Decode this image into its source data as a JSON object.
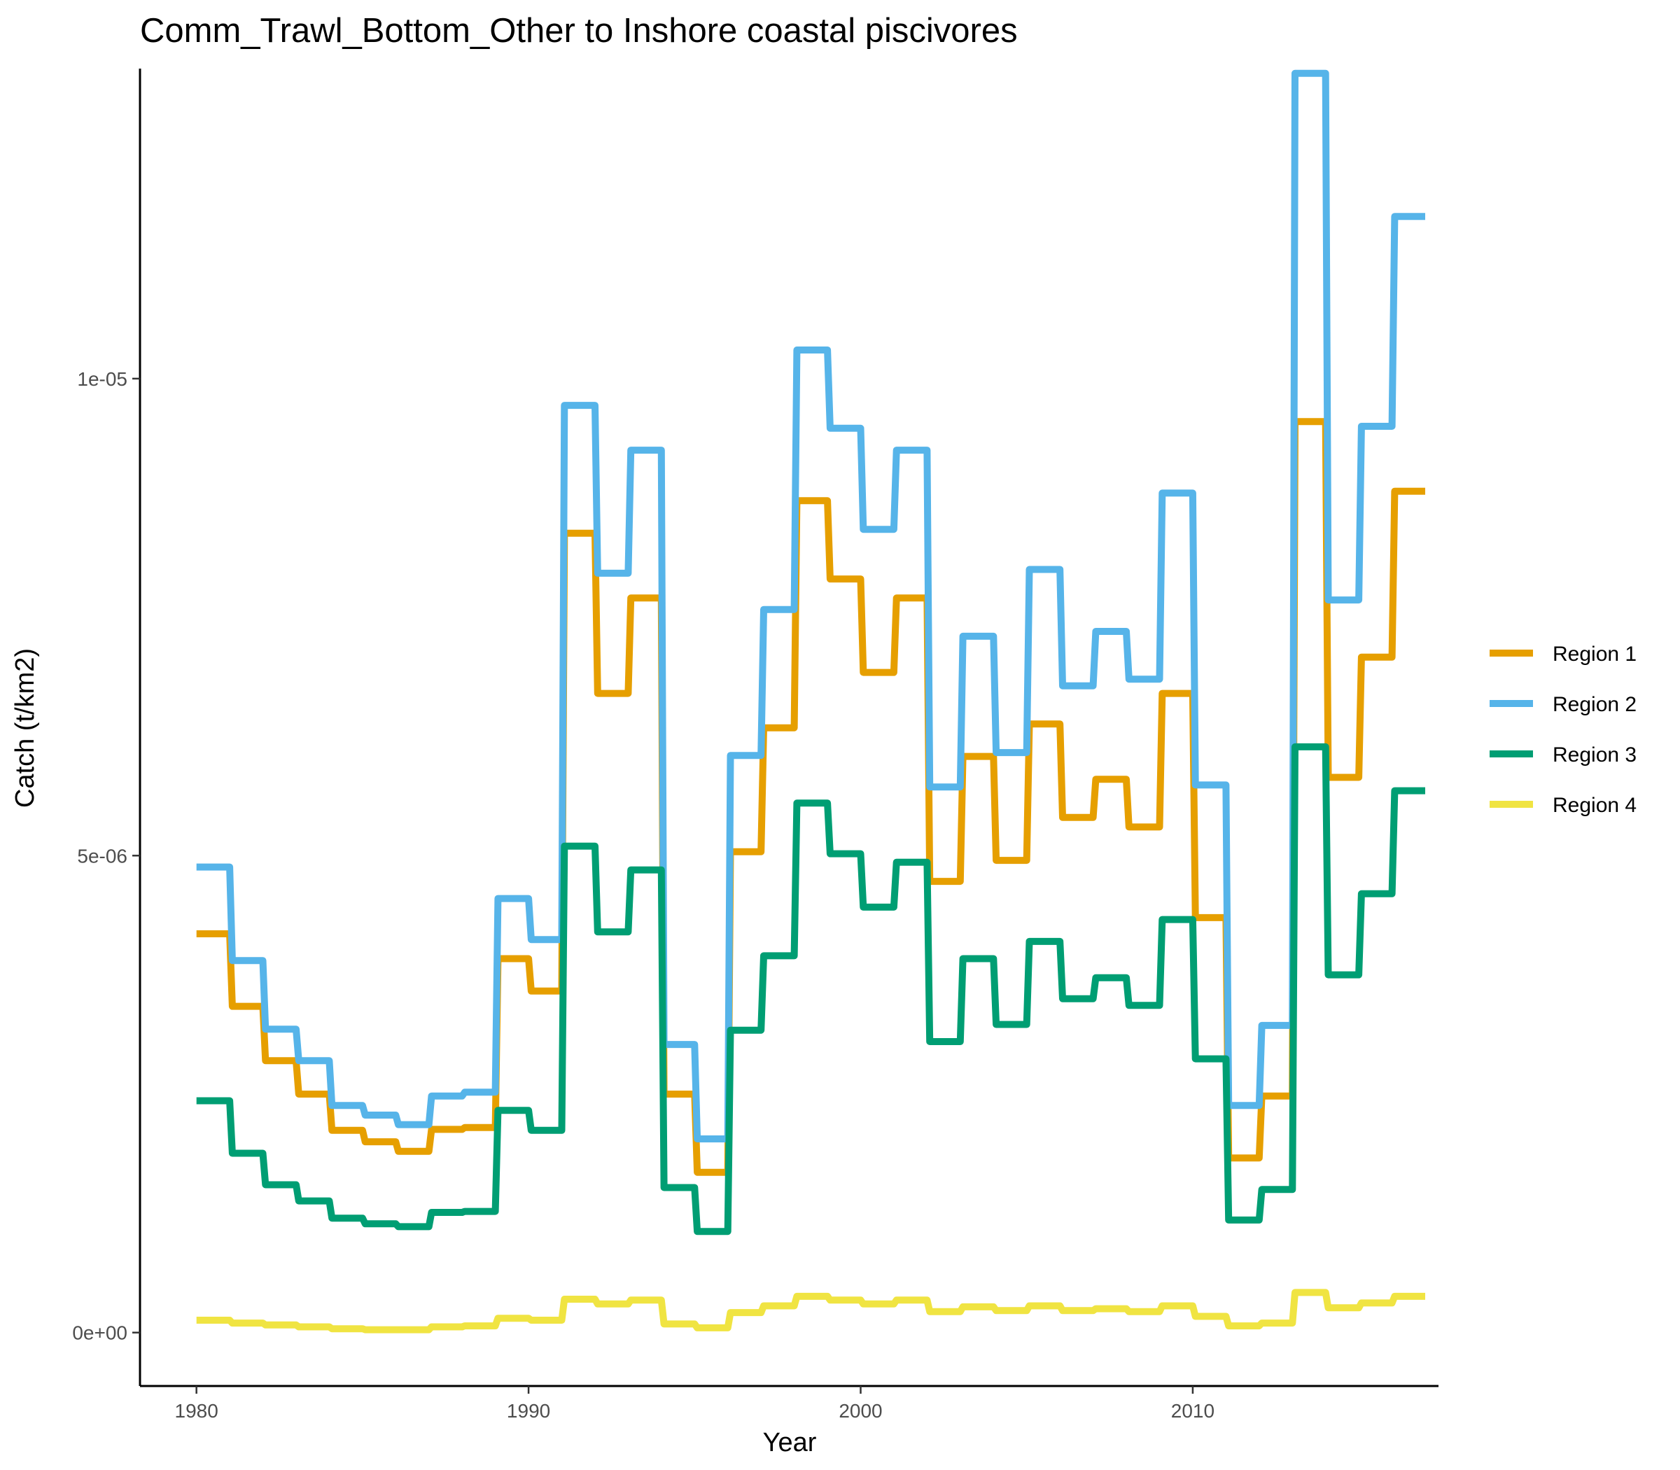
{
  "chart_data": {
    "type": "line",
    "title": "Comm_Trawl_Bottom_Other to Inshore coastal piscivores",
    "xlabel": "Year",
    "ylabel": "Catch (t/km2)",
    "xlim": [
      1978.3,
      2017.4
    ],
    "ylim": [
      -5.6e-07,
      1.325e-05
    ],
    "x_ticks": [
      1980,
      1990,
      2000,
      2010
    ],
    "x_tick_labels": [
      "1980",
      "1990",
      "2000",
      "2010"
    ],
    "y_ticks": [
      0,
      5e-06,
      1e-05
    ],
    "y_tick_labels": [
      "0e+00",
      "5e-06",
      "1e-05"
    ],
    "grid": false,
    "legend_position": "right",
    "x": [
      1980,
      1981,
      1982,
      1983,
      1984,
      1985,
      1986,
      1987,
      1988,
      1989,
      1990,
      1991,
      1992,
      1993,
      1994,
      1995,
      1996,
      1997,
      1998,
      1999,
      2000,
      2001,
      2002,
      2003,
      2004,
      2005,
      2006,
      2007,
      2008,
      2009,
      2010,
      2011,
      2012,
      2013,
      2014,
      2015,
      2016
    ],
    "series": [
      {
        "name": "Region 1",
        "color": "#E69F00",
        "values": [
          4.18e-06,
          3.42e-06,
          2.85e-06,
          2.5e-06,
          2.12e-06,
          2e-06,
          1.9e-06,
          2.13e-06,
          2.15e-06,
          3.92e-06,
          3.58e-06,
          8.38e-06,
          6.7e-06,
          7.7e-06,
          2.5e-06,
          1.68e-06,
          5.04e-06,
          6.34e-06,
          8.72e-06,
          7.9e-06,
          6.92e-06,
          7.7e-06,
          4.73e-06,
          6.04e-06,
          4.95e-06,
          6.38e-06,
          5.4e-06,
          5.8e-06,
          5.3e-06,
          6.7e-06,
          4.35e-06,
          1.83e-06,
          2.48e-06,
          9.55e-06,
          5.82e-06,
          7.08e-06,
          8.82e-06
        ]
      },
      {
        "name": "Region 2",
        "color": "#56B4E9",
        "values": [
          4.88e-06,
          3.9e-06,
          3.18e-06,
          2.85e-06,
          2.38e-06,
          2.28e-06,
          2.18e-06,
          2.48e-06,
          2.52e-06,
          4.55e-06,
          4.12e-06,
          9.72e-06,
          7.96e-06,
          9.25e-06,
          3.02e-06,
          2.03e-06,
          6.05e-06,
          7.58e-06,
          1.03e-05,
          9.48e-06,
          8.42e-06,
          9.25e-06,
          5.72e-06,
          7.3e-06,
          6.08e-06,
          8e-06,
          6.78e-06,
          7.35e-06,
          6.85e-06,
          8.8e-06,
          5.74e-06,
          2.38e-06,
          3.22e-06,
          1.32e-05,
          7.68e-06,
          9.5e-06,
          1.17e-05
        ]
      },
      {
        "name": "Region 3",
        "color": "#009E73",
        "values": [
          2.43e-06,
          1.88e-06,
          1.55e-06,
          1.38e-06,
          1.2e-06,
          1.14e-06,
          1.11e-06,
          1.26e-06,
          1.27e-06,
          2.33e-06,
          2.12e-06,
          5.1e-06,
          4.2e-06,
          4.85e-06,
          1.52e-06,
          1.06e-06,
          3.17e-06,
          3.95e-06,
          5.55e-06,
          5.02e-06,
          4.46e-06,
          4.93e-06,
          3.05e-06,
          3.92e-06,
          3.23e-06,
          4.1e-06,
          3.5e-06,
          3.72e-06,
          3.43e-06,
          4.33e-06,
          2.87e-06,
          1.18e-06,
          1.5e-06,
          6.14e-06,
          3.75e-06,
          4.6e-06,
          5.68e-06
        ]
      },
      {
        "name": "Region 4",
        "color": "#F0E442",
        "values": [
          1.3e-07,
          1e-07,
          8e-08,
          6e-08,
          4e-08,
          3e-08,
          3e-08,
          6e-08,
          7e-08,
          1.5e-07,
          1.3e-07,
          3.5e-07,
          3e-07,
          3.4e-07,
          9e-08,
          5e-08,
          2.1e-07,
          2.8e-07,
          3.8e-07,
          3.4e-07,
          3e-07,
          3.4e-07,
          2.2e-07,
          2.7e-07,
          2.3e-07,
          2.8e-07,
          2.3e-07,
          2.5e-07,
          2.2e-07,
          2.8e-07,
          1.7e-07,
          7e-08,
          1e-07,
          4.2e-07,
          2.6e-07,
          3.1e-07,
          3.8e-07
        ]
      }
    ]
  }
}
